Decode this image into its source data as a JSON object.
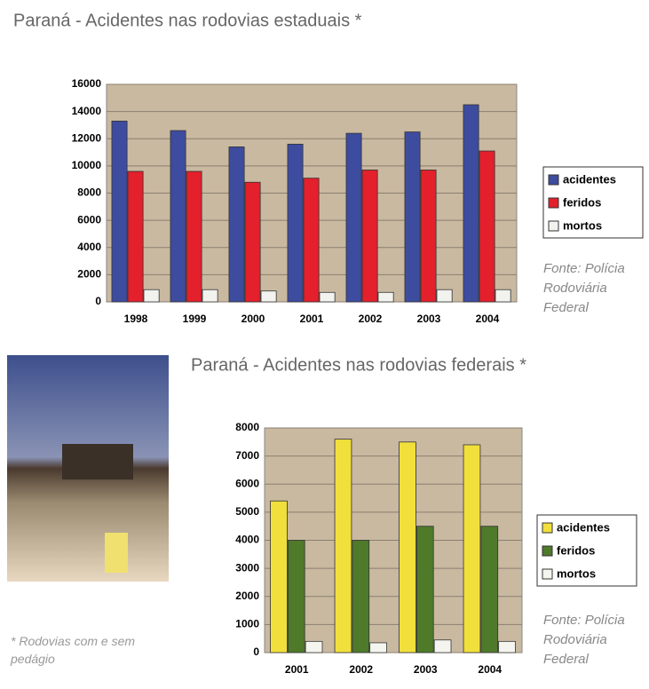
{
  "chart_data": [
    {
      "type": "bar",
      "title": "Paraná - Acidentes nas rodovias estaduais *",
      "categories": [
        "1998",
        "1999",
        "2000",
        "2001",
        "2002",
        "2003",
        "2004"
      ],
      "series": [
        {
          "name": "acidentes",
          "color": "#3d4c9e",
          "values": [
            13300,
            12600,
            11400,
            11600,
            12400,
            12500,
            14500
          ]
        },
        {
          "name": "feridos",
          "color": "#e3202b",
          "values": [
            9600,
            9600,
            8800,
            9100,
            9700,
            9700,
            11100
          ]
        },
        {
          "name": "mortos",
          "color": "#f2f2ee",
          "values": [
            900,
            900,
            800,
            700,
            700,
            900,
            900
          ]
        }
      ],
      "ylim": [
        0,
        16000
      ],
      "yticks": [
        0,
        2000,
        4000,
        6000,
        8000,
        10000,
        12000,
        14000,
        16000
      ],
      "grid": true,
      "legend": "right",
      "source": "Fonte: Polícia Rodoviária Federal"
    },
    {
      "type": "bar",
      "title": "Paraná - Acidentes nas rodovias federais *",
      "categories": [
        "2001",
        "2002",
        "2003",
        "2004"
      ],
      "series": [
        {
          "name": "acidentes",
          "color": "#f1df3c",
          "values": [
            5400,
            7600,
            7500,
            7400
          ]
        },
        {
          "name": "feridos",
          "color": "#4e7a2a",
          "values": [
            4000,
            4000,
            4500,
            4500
          ]
        },
        {
          "name": "mortos",
          "color": "#f5f5ef",
          "values": [
            400,
            350,
            450,
            400
          ]
        }
      ],
      "ylim": [
        0,
        8000
      ],
      "yticks": [
        0,
        1000,
        2000,
        3000,
        4000,
        5000,
        6000,
        7000,
        8000
      ],
      "grid": true,
      "legend": "right",
      "source": "Fonte: Polícia Rodoviária Federal",
      "annotation": "* Rodovias com e sem pedágio"
    }
  ]
}
